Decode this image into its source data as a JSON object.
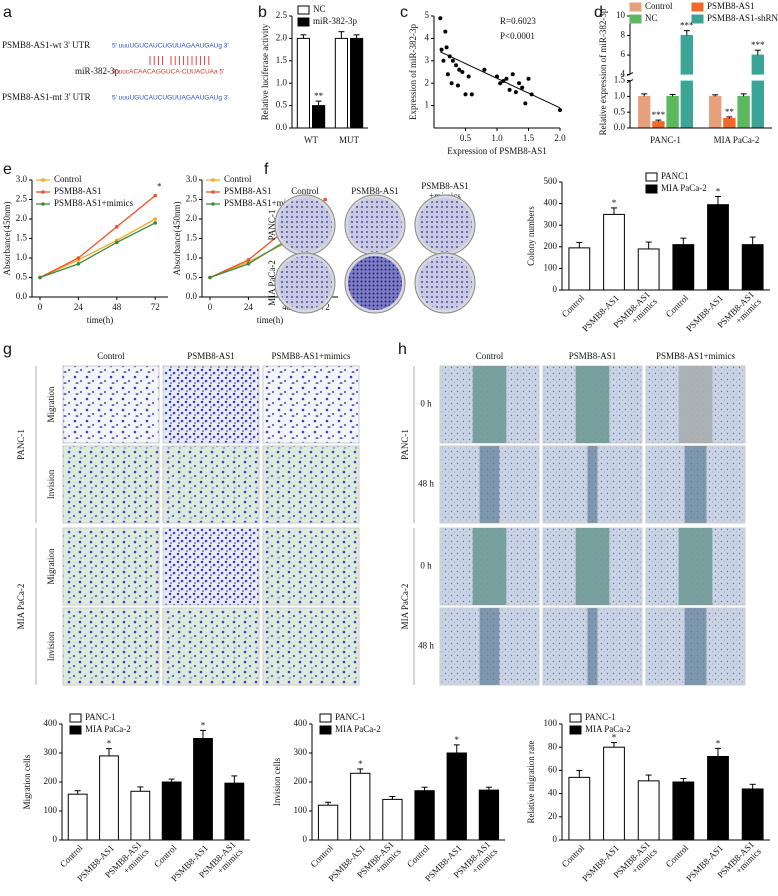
{
  "panel_labels": [
    "a",
    "b",
    "c",
    "d",
    "e",
    "f",
    "g",
    "h"
  ],
  "sequence": {
    "wt_label": "PSMB8-AS1-wt 3' UTR",
    "wt_seq": "5' uuuUGUCAUCUGUUAGAAUGAUg 3'",
    "mirna_label": "miR-382-3p",
    "mirna_seq": "3' uucACAACAGGUCA-CUUACUAa 5'",
    "mt_label": "PSMB8-AS1-mt 3' UTR",
    "mt_seq": "5' uuuUGUCAUCUGUUAGAAUGAUg 3'"
  },
  "chart_data": [
    {
      "type": "bar",
      "categories": [
        "WT",
        "MUT"
      ],
      "series": [
        {
          "name": "NC",
          "color": "#ffffff",
          "values": [
            2.0,
            2.0
          ],
          "errors": [
            0.08,
            0.15
          ]
        },
        {
          "name": "miR-382-3p",
          "color": "#000000",
          "values": [
            0.5,
            2.0
          ],
          "errors": [
            0.1,
            0.08
          ],
          "significance": [
            "**",
            null
          ]
        }
      ],
      "ylabel": "Relative luciferase activity",
      "ylim": [
        0,
        2.5
      ],
      "yticks": [
        {
          "value": 0,
          "label": "0.0"
        },
        0.5,
        {
          "value": 1,
          "label": "1.0"
        },
        1.5,
        {
          "value": 2,
          "label": "2.0"
        },
        2.5
      ]
    },
    {
      "type": "scatter",
      "x": [
        0.1,
        0.12,
        0.15,
        0.18,
        0.2,
        0.22,
        0.25,
        0.28,
        0.3,
        0.35,
        0.38,
        0.4,
        0.45,
        0.5,
        0.55,
        0.6,
        0.8,
        1.0,
        1.05,
        1.1,
        1.15,
        1.2,
        1.25,
        1.3,
        1.35,
        1.4,
        1.45,
        1.5,
        1.55,
        2.0
      ],
      "y": [
        4.9,
        3.5,
        3.0,
        4.3,
        3.6,
        2.4,
        3.2,
        2.0,
        3.0,
        2.8,
        1.9,
        2.6,
        2.5,
        1.5,
        2.3,
        1.5,
        2.6,
        2.3,
        2.0,
        2.1,
        2.2,
        1.7,
        2.4,
        1.6,
        2.0,
        1.8,
        1.1,
        2.2,
        1.5,
        0.8
      ],
      "fit_x": [
        0.1,
        2.0
      ],
      "fit_y": [
        3.4,
        0.9
      ],
      "annotations": [
        "R=0.6023",
        "P<0.0001"
      ],
      "xlabel": "Expression of PSMB8-AS1",
      "ylabel": "Expression of miR-382-3p",
      "xlim": [
        0,
        2.0
      ],
      "xticks": [
        0.5,
        {
          "value": 1,
          "label": "1.0"
        },
        1.5,
        {
          "value": 2,
          "label": "2.0"
        }
      ],
      "ylim": [
        0,
        5
      ],
      "yticks": [
        1,
        2,
        3,
        4,
        5
      ]
    },
    {
      "type": "bar",
      "categories": [
        "PANC-1",
        "MIA PaCa-2"
      ],
      "series": [
        {
          "name": "Control",
          "color": "#e6a07c",
          "values": [
            1.0,
            1.0
          ],
          "errors": [
            0.08,
            0.05
          ]
        },
        {
          "name": "PSMB8-AS1",
          "color": "#f0692b",
          "values": [
            0.2,
            0.3
          ],
          "errors": [
            0.05,
            0.05
          ],
          "significance": [
            "***",
            "**"
          ]
        },
        {
          "name": "NC",
          "color": "#5cb85c",
          "values": [
            1.0,
            1.0
          ],
          "errors": [
            0.06,
            0.08
          ]
        },
        {
          "name": "PSMB8-AS1-shRNA",
          "color": "#3aa597",
          "values": [
            8.0,
            6.0
          ],
          "errors": [
            0.5,
            0.5
          ],
          "significance": [
            "***",
            "***"
          ]
        }
      ],
      "ylabel": "Relative expression of miR-382-3p",
      "ylim": [
        0,
        10
      ],
      "axis_break": [
        1.5,
        4
      ],
      "yticks": [
        {
          "value": 0,
          "label": "0.0"
        },
        0.5,
        {
          "value": 1,
          "label": "1.0"
        },
        1.5,
        4,
        6,
        8,
        10
      ]
    },
    {
      "type": "line",
      "x": [
        0,
        24,
        48,
        72
      ],
      "series": [
        {
          "name": "Control",
          "color": "#f5a623",
          "values": [
            0.5,
            0.95,
            1.45,
            2.0
          ]
        },
        {
          "name": "PSMB8-AS1",
          "color": "#f0522a",
          "values": [
            0.5,
            1.0,
            1.8,
            2.6
          ],
          "significance": [
            null,
            null,
            null,
            "*"
          ]
        },
        {
          "name": "PSMB8-AS1+mimics",
          "color": "#3d8b3d",
          "values": [
            0.5,
            0.85,
            1.4,
            1.9
          ]
        }
      ],
      "xlabel": "time(h)",
      "ylabel": "Absorbance(450nm)",
      "xlim": [
        -5,
        80
      ],
      "xticks": [
        0,
        24,
        48,
        72
      ],
      "ylim": [
        0,
        3
      ],
      "yticks": [
        {
          "value": 0,
          "label": "0.0"
        },
        0.5,
        {
          "value": 1,
          "label": "1.0"
        },
        1.5,
        {
          "value": 2,
          "label": "2.0"
        },
        2.5,
        {
          "value": 3,
          "label": "3.0"
        }
      ]
    },
    {
      "type": "line",
      "x": [
        0,
        24,
        48,
        72
      ],
      "series": [
        {
          "name": "Control",
          "color": "#f5a623",
          "values": [
            0.5,
            0.9,
            1.4,
            1.9
          ]
        },
        {
          "name": "PSMB8-AS1",
          "color": "#f0522a",
          "values": [
            0.5,
            0.95,
            1.75,
            2.5
          ]
        },
        {
          "name": "PSMB8-AS1+mimics",
          "color": "#3d8b3d",
          "values": [
            0.5,
            0.85,
            1.45,
            2.05
          ]
        }
      ],
      "xlabel": "time(h)",
      "ylabel": "Absorbance(450nm)",
      "xlim": [
        -5,
        80
      ],
      "xticks": [
        0,
        24,
        48,
        72
      ],
      "ylim": [
        0,
        3
      ],
      "yticks": [
        {
          "value": 0,
          "label": "0.0"
        },
        0.5,
        {
          "value": 1,
          "label": "1.0"
        },
        1.5,
        {
          "value": 2,
          "label": "2.0"
        },
        2.5,
        {
          "value": 3,
          "label": "3.0"
        }
      ]
    },
    {
      "type": "bar",
      "categories": [
        "Control",
        "PSMB8-AS1",
        "PSMB8-AS1\n+mimics",
        "Control",
        "PSMB8-AS1",
        "PSMB8-AS1\n+mimics"
      ],
      "series": [
        {
          "name": "PANC1",
          "color": "#ffffff",
          "values": [
            195,
            350,
            190,
            null,
            null,
            null
          ],
          "errors": [
            25,
            30,
            32,
            null,
            null,
            null
          ],
          "significance": [
            null,
            "*",
            null,
            null,
            null,
            null
          ]
        },
        {
          "name": "MIA PaCa-2",
          "color": "#000000",
          "values": [
            null,
            null,
            null,
            210,
            395,
            210
          ],
          "errors": [
            null,
            null,
            null,
            30,
            38,
            35
          ],
          "significance": [
            null,
            null,
            null,
            null,
            "*",
            null
          ]
        }
      ],
      "ylabel": "Colony numbers",
      "ylim": [
        0,
        500
      ],
      "yticks": [
        0,
        100,
        200,
        300,
        400,
        500
      ]
    },
    {
      "type": "bar",
      "categories": [
        "Control",
        "PSMB8-AS1",
        "PSMB8-AS1\n+mimics",
        "Control",
        "PSMB8-AS1",
        "PSMB8-AS1\n+mimics"
      ],
      "series": [
        {
          "name": "PANC-1",
          "color": "#ffffff",
          "values": [
            158,
            290,
            168,
            null,
            null,
            null
          ],
          "errors": [
            12,
            25,
            15,
            null,
            null,
            null
          ],
          "significance": [
            null,
            "*",
            null,
            null,
            null,
            null
          ]
        },
        {
          "name": "MIA PaCa-2",
          "color": "#000000",
          "values": [
            null,
            null,
            null,
            200,
            350,
            196
          ],
          "errors": [
            null,
            null,
            null,
            10,
            28,
            25
          ],
          "significance": [
            null,
            null,
            null,
            null,
            "*",
            null
          ]
        }
      ],
      "ylabel": "Migration cells",
      "ylim": [
        0,
        400
      ],
      "yticks": [
        0,
        100,
        200,
        300,
        400
      ]
    },
    {
      "type": "bar",
      "categories": [
        "Control",
        "PSMB8-AS1",
        "PSMB8-AS1\n+mimics",
        "Control",
        "PSMB8-AS1",
        "PSMB8-AS1\n+mimics"
      ],
      "series": [
        {
          "name": "PANC-1",
          "color": "#ffffff",
          "values": [
            120,
            230,
            140,
            null,
            null,
            null
          ],
          "errors": [
            10,
            15,
            10,
            null,
            null,
            null
          ],
          "significance": [
            null,
            "*",
            null,
            null,
            null,
            null
          ]
        },
        {
          "name": "MIA PaCa-2",
          "color": "#000000",
          "values": [
            null,
            null,
            null,
            170,
            300,
            172
          ],
          "errors": [
            null,
            null,
            null,
            12,
            28,
            10
          ],
          "significance": [
            null,
            null,
            null,
            null,
            "*",
            null
          ]
        }
      ],
      "ylabel": "Invision cells",
      "ylim": [
        0,
        400
      ],
      "yticks": [
        0,
        100,
        200,
        300,
        400
      ]
    },
    {
      "type": "bar",
      "categories": [
        "Control",
        "PSMB8-AS1",
        "PSMB8-AS1\n+mimics",
        "Control",
        "PSMB8-AS1",
        "PSMB8-AS1\n+mimics"
      ],
      "series": [
        {
          "name": "PANC-1",
          "color": "#ffffff",
          "values": [
            54,
            80,
            51,
            null,
            null,
            null
          ],
          "errors": [
            6,
            4,
            5,
            null,
            null,
            null
          ],
          "significance": [
            null,
            "*",
            null,
            null,
            null,
            null
          ]
        },
        {
          "name": "MIA PaCa-2",
          "color": "#000000",
          "values": [
            null,
            null,
            null,
            50,
            72,
            44
          ],
          "errors": [
            null,
            null,
            null,
            3,
            7,
            4
          ],
          "significance": [
            null,
            null,
            null,
            null,
            "*",
            null
          ]
        }
      ],
      "ylabel": "Relative migration rate",
      "ylim": [
        0,
        100
      ],
      "yticks": [
        0,
        20,
        40,
        60,
        80,
        100
      ]
    }
  ],
  "colony_plates": {
    "columns": [
      "Control",
      "PSMB8-AS1",
      "PSMB8-AS1\n+mimics"
    ],
    "rows": [
      "PANC-1",
      "MIA PaCa-2"
    ]
  },
  "transwell": {
    "columns": [
      "Control",
      "PSMB8-AS1",
      "PSMB8-AS1+mimics"
    ],
    "groups": [
      {
        "name": "PANC-1",
        "rows": [
          "Migration",
          "Invision"
        ]
      },
      {
        "name": "MIA PaCa-2",
        "rows": [
          "Migration",
          "Invision"
        ]
      }
    ]
  },
  "wound": {
    "columns": [
      "Control",
      "PSMB8-AS1",
      "PSMB8-AS1+mimics"
    ],
    "groups": [
      {
        "name": "PANC-1",
        "rows": [
          "0 h",
          "48 h"
        ]
      },
      {
        "name": "MIA PaCa-2",
        "rows": [
          "0 h",
          "48 h"
        ]
      }
    ]
  }
}
